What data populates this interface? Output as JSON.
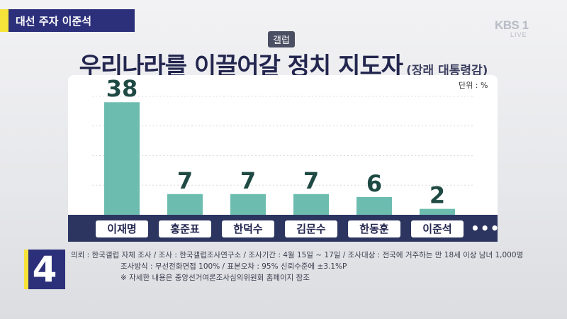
{
  "tag": {
    "label": "대선 주자 이준석"
  },
  "logo": {
    "text": "KBS 1",
    "sub": "LIVE"
  },
  "source_badge": "갤럽",
  "title": {
    "main": "우리나라를 이끌어갈 정치 지도자",
    "sub": "(장래 대통령감)"
  },
  "unit": "단위 : %",
  "more_label": "•••",
  "segment_number": "4",
  "footnotes": [
    "의뢰 : 한국갤럽 자체 조사 / 조사 : 한국갤럽조사연구소 / 조사기간 : 4월 15일 ~ 17일 / 조사대상 : 전국에 거주하는 만 18세 이상 남녀 1,000명",
    "조사방식 : 무선전화면접 100% / 표본오차 : 95% 신뢰수준에 ±3.1%P",
    "※ 자세한 내용은 중앙선거여론조사심의위원회 홈페이지 참조"
  ],
  "colors": {
    "bar": "#6dbcb0",
    "label": "#1f4a44",
    "accent": "#2c2f7a",
    "highlight": "#f5e33a"
  },
  "chart_data": {
    "type": "bar",
    "title": "우리나라를 이끌어갈 정치 지도자",
    "subtitle": "(장래 대통령감)",
    "unit": "%",
    "categories": [
      "이재명",
      "홍준표",
      "한덕수",
      "김문수",
      "한동훈",
      "이준석"
    ],
    "values": [
      38,
      7,
      7,
      7,
      6,
      2
    ],
    "ylim": [
      0,
      45
    ],
    "grid": true,
    "data_labels": true
  }
}
